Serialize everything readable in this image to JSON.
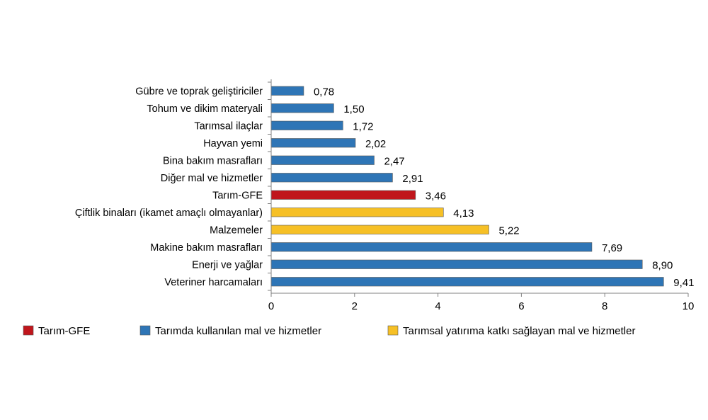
{
  "chart_data": {
    "type": "bar",
    "orientation": "horizontal",
    "title": "",
    "xlabel": "",
    "ylabel": "",
    "xlim": [
      0,
      10
    ],
    "xticks": [
      0,
      2,
      4,
      6,
      8,
      10
    ],
    "grid": false,
    "legend_position": "bottom",
    "colors": {
      "Tarım-GFE": "#c0161c",
      "Tarımda kullanılan mal ve hizmetler": "#2e75b6",
      "Tarımsal yatırıma katkı sağlayan mal ve hizmetler": "#f6c026"
    },
    "legend": [
      {
        "label": "Tarım-GFE",
        "color": "#c0161c"
      },
      {
        "label": "Tarımda kullanılan mal ve hizmetler",
        "color": "#2e75b6"
      },
      {
        "label": "Tarımsal yatırıma katkı sağlayan mal ve hizmetler",
        "color": "#f6c026"
      }
    ],
    "bars": [
      {
        "category": "Gübre ve toprak geliştiriciler",
        "value": 0.78,
        "label": "0,78",
        "group": "Tarımda kullanılan mal ve hizmetler"
      },
      {
        "category": "Tohum ve dikim materyali",
        "value": 1.5,
        "label": "1,50",
        "group": "Tarımda kullanılan mal ve hizmetler"
      },
      {
        "category": "Tarımsal ilaçlar",
        "value": 1.72,
        "label": "1,72",
        "group": "Tarımda kullanılan mal ve hizmetler"
      },
      {
        "category": "Hayvan yemi",
        "value": 2.02,
        "label": "2,02",
        "group": "Tarımda kullanılan mal ve hizmetler"
      },
      {
        "category": "Bina bakım masrafları",
        "value": 2.47,
        "label": "2,47",
        "group": "Tarımda kullanılan mal ve hizmetler"
      },
      {
        "category": "Diğer mal ve hizmetler",
        "value": 2.91,
        "label": "2,91",
        "group": "Tarımda kullanılan mal ve hizmetler"
      },
      {
        "category": "Tarım-GFE",
        "value": 3.46,
        "label": "3,46",
        "group": "Tarım-GFE"
      },
      {
        "category": "Çiftlik binaları (ikamet amaçlı olmayanlar)",
        "value": 4.13,
        "label": "4,13",
        "group": "Tarımsal yatırıma katkı sağlayan mal ve hizmetler"
      },
      {
        "category": "Malzemeler",
        "value": 5.22,
        "label": "5,22",
        "group": "Tarımsal yatırıma katkı sağlayan mal ve hizmetler"
      },
      {
        "category": "Makine bakım masrafları",
        "value": 7.69,
        "label": "7,69",
        "group": "Tarımda kullanılan mal ve hizmetler"
      },
      {
        "category": "Enerji ve yağlar",
        "value": 8.9,
        "label": "8,90",
        "group": "Tarımda kullanılan mal ve hizmetler"
      },
      {
        "category": "Veteriner harcamaları",
        "value": 9.41,
        "label": "9,41",
        "group": "Tarımda kullanılan mal ve hizmetler"
      }
    ]
  }
}
